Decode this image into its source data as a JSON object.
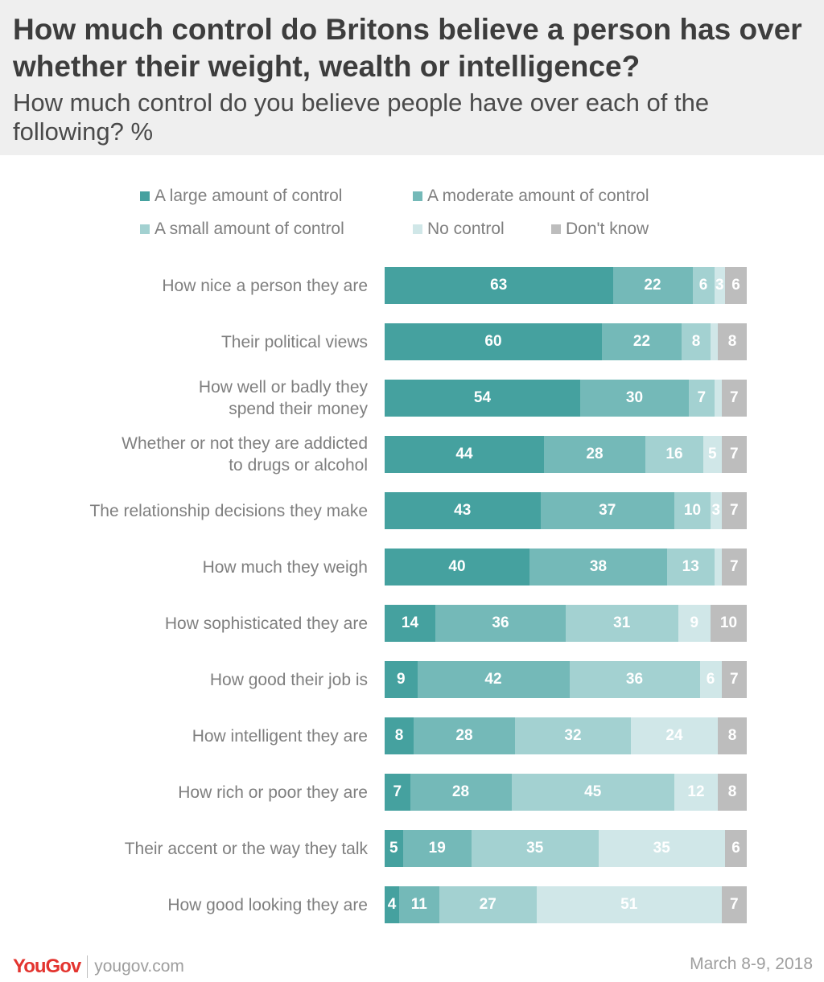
{
  "header": {
    "title": "How much control do Britons believe a person has over whether their weight, wealth or intelligence?",
    "subtitle": "How much control do you believe people have over each of the following? %"
  },
  "chart_data": {
    "type": "bar",
    "orientation": "horizontal",
    "stacked": true,
    "title": "How much control do Britons believe a person has over whether their weight, wealth or intelligence?",
    "subtitle": "How much control do you believe people have over each of the following? %",
    "legend_position": "top",
    "categories": [
      [
        "How nice a person they are"
      ],
      [
        "Their political views"
      ],
      [
        "How well or badly they",
        "spend their money"
      ],
      [
        "Whether or not they are addicted",
        "to drugs or alcohol"
      ],
      [
        "The relationship decisions they make"
      ],
      [
        "How much they weigh"
      ],
      [
        "How sophisticated they are"
      ],
      [
        "How good their job is"
      ],
      [
        "How intelligent they are"
      ],
      [
        "How rich or poor they are"
      ],
      [
        "Their accent or the way they talk"
      ],
      [
        "How good looking they are"
      ]
    ],
    "series": [
      {
        "name": "A large amount of control",
        "color": "#45a19f",
        "values": [
          63,
          60,
          54,
          44,
          43,
          40,
          14,
          9,
          8,
          7,
          5,
          4
        ]
      },
      {
        "name": "A moderate amount of control",
        "color": "#74b9b8",
        "values": [
          22,
          22,
          30,
          28,
          37,
          38,
          36,
          42,
          28,
          28,
          19,
          11
        ]
      },
      {
        "name": "A small amount of control",
        "color": "#a3d1d1",
        "values": [
          6,
          8,
          7,
          16,
          10,
          13,
          31,
          36,
          32,
          45,
          35,
          27
        ]
      },
      {
        "name": "No control",
        "color": "#d0e7e8",
        "values": [
          3,
          2,
          2,
          5,
          3,
          2,
          9,
          6,
          24,
          12,
          35,
          51
        ]
      },
      {
        "name": "Don't know",
        "color": "#bdbdbd",
        "values": [
          6,
          8,
          7,
          7,
          7,
          7,
          10,
          7,
          8,
          8,
          6,
          7
        ]
      }
    ],
    "value_labels": [
      [
        "63",
        "22",
        "6",
        "3",
        "6"
      ],
      [
        "60",
        "22",
        "8",
        "",
        "8"
      ],
      [
        "54",
        "30",
        "7",
        "",
        "7"
      ],
      [
        "44",
        "28",
        "16",
        "5",
        "7"
      ],
      [
        "43",
        "37",
        "10",
        "3",
        "7"
      ],
      [
        "40",
        "38",
        "13",
        "",
        "7"
      ],
      [
        "14",
        "36",
        "31",
        "9",
        "10"
      ],
      [
        "9",
        "42",
        "36",
        "6",
        "7"
      ],
      [
        "8",
        "28",
        "32",
        "24",
        "8"
      ],
      [
        "7",
        "28",
        "45",
        "12",
        "8"
      ],
      [
        "5",
        "19",
        "35",
        "35",
        "6"
      ],
      [
        "4",
        "11",
        "27",
        "51",
        "7"
      ]
    ],
    "xlim": [
      0,
      100
    ]
  },
  "footer": {
    "logo": "YouGov",
    "url": "yougov.com",
    "date": "March 8-9, 2018"
  }
}
